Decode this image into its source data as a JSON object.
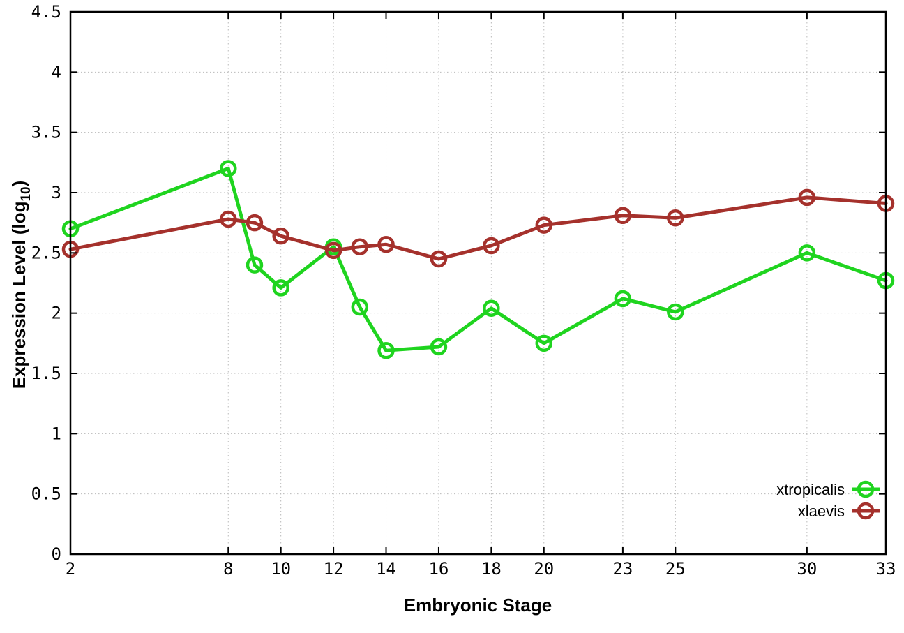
{
  "chart_data": {
    "type": "line",
    "title": "",
    "xlabel": "Embryonic Stage",
    "ylabel": "Expression Level (log10)",
    "ylabel_prefix": "Expression Level (log",
    "ylabel_subscript": "10",
    "ylabel_suffix": ")",
    "xlim": [
      2,
      33
    ],
    "ylim": [
      0,
      4.5
    ],
    "x_ticks": [
      2,
      8,
      10,
      12,
      14,
      16,
      18,
      20,
      23,
      25,
      30,
      33
    ],
    "y_ticks": [
      0,
      0.5,
      1,
      1.5,
      2,
      2.5,
      3,
      3.5,
      4,
      4.5
    ],
    "grid": true,
    "grid_style": "dotted",
    "legend_position": "inside-bottom-right",
    "x": [
      2,
      8,
      9,
      10,
      12,
      13,
      14,
      16,
      18,
      20,
      23,
      25,
      30,
      33
    ],
    "series": [
      {
        "name": "xtropicalis",
        "color": "#1fd41f",
        "marker": "open-circle",
        "values": [
          2.7,
          3.2,
          2.4,
          2.21,
          2.55,
          2.05,
          1.69,
          1.72,
          2.04,
          1.75,
          2.12,
          2.01,
          2.5,
          2.27
        ]
      },
      {
        "name": "xlaevis",
        "color": "#a5312c",
        "marker": "open-circle",
        "values": [
          2.53,
          2.78,
          2.75,
          2.64,
          2.52,
          2.55,
          2.57,
          2.45,
          2.56,
          2.73,
          2.81,
          2.79,
          2.96,
          2.91
        ]
      }
    ]
  },
  "style": {
    "grid_color": "#b9b9b9",
    "border_color": "#000000",
    "background": "#ffffff"
  }
}
